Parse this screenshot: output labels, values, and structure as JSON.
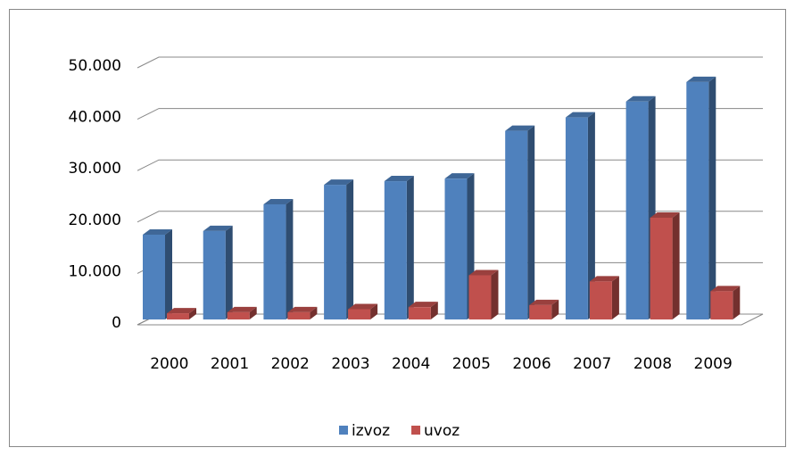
{
  "chart_data": {
    "type": "bar3d",
    "categories": [
      "2000",
      "2001",
      "2002",
      "2003",
      "2004",
      "2005",
      "2006",
      "2007",
      "2008",
      "2009"
    ],
    "series": [
      {
        "name": "izvoz",
        "color": "#4f81bd",
        "values": [
          16500,
          17200,
          22400,
          26200,
          26900,
          27400,
          36700,
          39300,
          42400,
          46200
        ]
      },
      {
        "name": "uvoz",
        "color": "#c0504d",
        "values": [
          1200,
          1400,
          1400,
          2000,
          2400,
          8600,
          2800,
          7400,
          19800,
          5500
        ]
      }
    ],
    "ylim": [
      0,
      50000
    ],
    "yticks": [
      0,
      {
        "value": 10000,
        "label": "10.000"
      },
      {
        "value": 20000,
        "label": "20.000"
      },
      {
        "value": 30000,
        "label": "30.000"
      },
      {
        "value": 40000,
        "label": "40.000"
      },
      {
        "value": 50000,
        "label": "50.000"
      }
    ],
    "grid": true,
    "legend": "bottom"
  }
}
